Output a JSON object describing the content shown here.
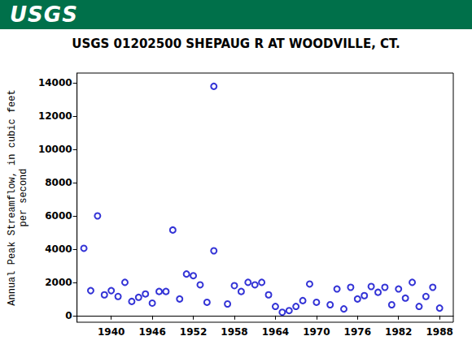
{
  "header": {
    "logo": "USGS"
  },
  "chart_data": {
    "type": "scatter",
    "title": "USGS 01202500 SHEPAUG R AT WOODVILLE, CT.",
    "ylabel": "Annual Peak Streamflow, in cubic feet\nper second",
    "x": [
      1936,
      1937,
      1938,
      1939,
      1940,
      1941,
      1942,
      1943,
      1944,
      1945,
      1946,
      1947,
      1948,
      1949,
      1950,
      1951,
      1952,
      1953,
      1954,
      1955,
      1955,
      1957,
      1958,
      1959,
      1960,
      1961,
      1962,
      1963,
      1964,
      1965,
      1966,
      1967,
      1968,
      1969,
      1970,
      1972,
      1973,
      1974,
      1975,
      1976,
      1977,
      1978,
      1979,
      1980,
      1981,
      1982,
      1983,
      1984,
      1985,
      1986,
      1987,
      1988
    ],
    "values": [
      4050,
      1500,
      6000,
      1250,
      1500,
      1150,
      2000,
      850,
      1100,
      1300,
      750,
      1450,
      1450,
      5150,
      1000,
      2500,
      2400,
      1850,
      800,
      13800,
      3900,
      700,
      1800,
      1450,
      2000,
      1850,
      2000,
      1250,
      550,
      200,
      300,
      550,
      900,
      1900,
      800,
      650,
      1600,
      400,
      1700,
      1000,
      1200,
      1750,
      1400,
      1700,
      650,
      1600,
      1050,
      2000,
      550,
      1150,
      1700,
      450
    ],
    "color": "#0000cc",
    "marker": "circle_open",
    "xlim": [
      1935,
      1990
    ],
    "xticks": [
      1940,
      1946,
      1952,
      1958,
      1964,
      1970,
      1976,
      1982,
      1988
    ],
    "ylim": [
      -400,
      14600
    ],
    "yticks": [
      0,
      2000,
      4000,
      6000,
      8000,
      10000,
      12000,
      14000
    ],
    "grid": false
  }
}
